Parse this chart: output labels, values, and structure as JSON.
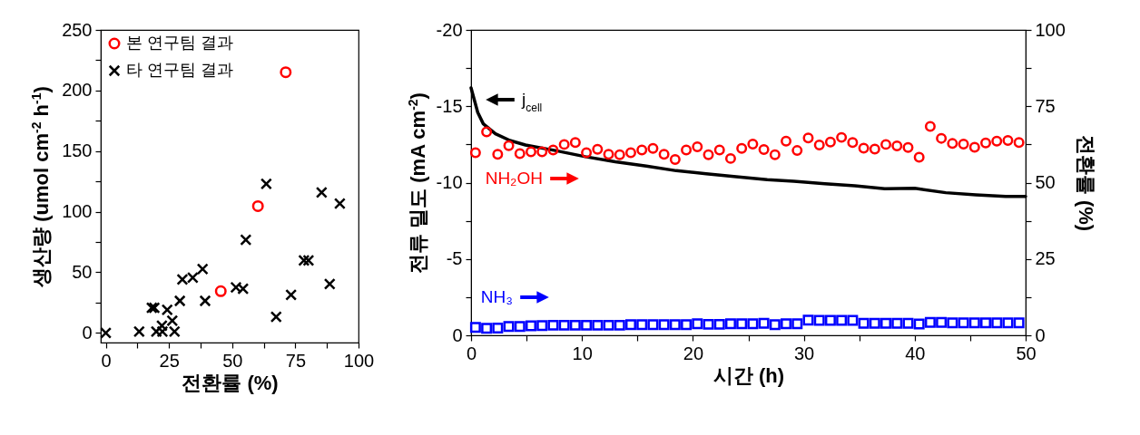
{
  "chart_data": [
    {
      "type": "scatter",
      "xlabel": "전환률 (%)",
      "ylabel": "생산량 (umol cm$^{-2}$ h$^{-1}$)",
      "xlim": [
        -2,
        100
      ],
      "ylim": [
        -8,
        250
      ],
      "xticks": [
        0,
        {
          "value": 12.5,
          "label": null
        },
        25,
        {
          "value": 37.5,
          "label": null
        },
        50,
        {
          "value": 62.5,
          "label": null
        },
        75,
        {
          "value": 87.5,
          "label": null
        },
        100
      ],
      "yticks": [
        0,
        {
          "value": 25,
          "label": null
        },
        50,
        {
          "value": 75,
          "label": null
        },
        100,
        {
          "value": 125,
          "label": null
        },
        150,
        {
          "value": 175,
          "label": null
        },
        200,
        {
          "value": 225,
          "label": null
        },
        250
      ],
      "grid": false,
      "legend": "top left",
      "series": [
        {
          "name": "본 연구팀 결과",
          "color": "#ff0000",
          "marker": "circle",
          "x": [
            45.5,
            60.2,
            71.2
          ],
          "values": [
            34.4,
            104.6,
            215.1
          ]
        },
        {
          "name": "타 연구팀 결과",
          "color": "#000000",
          "marker": "cross",
          "x": [
            0,
            13.2,
            18.2,
            19.2,
            20,
            22.2,
            22.4,
            24.3,
            26.3,
            27.2,
            29.3,
            30.3,
            34.4,
            38.3,
            39.3,
            51.5,
            54.3,
            55.4,
            63.5,
            67.4,
            73.3,
            78.4,
            80.2,
            85.4,
            88.6,
            92.6
          ],
          "values": [
            0,
            1,
            20.7,
            20.7,
            1,
            6,
            1,
            19,
            10,
            1,
            26.4,
            44,
            45.6,
            52.6,
            26.4,
            37.6,
            36.4,
            76.8,
            122.9,
            13.2,
            31.4,
            59.8,
            59.8,
            115.9,
            40.4,
            106.7
          ]
        }
      ]
    },
    {
      "type": "line",
      "xlabel": "시간 (h)",
      "ylabel": "전류 밀도 (mA cm$^{-2}$)",
      "y2label": "전환률 (%)",
      "xlim": [
        0,
        50
      ],
      "ylim": [
        0,
        -20
      ],
      "y2lim": [
        0,
        100
      ],
      "xticks": [
        0,
        {
          "value": 5,
          "label": null
        },
        10,
        {
          "value": 15,
          "label": null
        },
        20,
        {
          "value": 25,
          "label": null
        },
        30,
        {
          "value": 35,
          "label": null
        },
        40,
        {
          "value": 45,
          "label": null
        },
        50
      ],
      "yticks": [
        0,
        {
          "value": -2.5,
          "label": null
        },
        -5,
        {
          "value": -7.5,
          "label": null
        },
        -10,
        {
          "value": -12.5,
          "label": null
        },
        -15,
        {
          "value": -17.5,
          "label": null
        },
        -20
      ],
      "y2ticks": [
        0,
        {
          "value": 12.5,
          "label": null
        },
        25,
        {
          "value": 37.5,
          "label": null
        },
        50,
        {
          "value": 62.5,
          "label": null
        },
        75,
        {
          "value": 87.5,
          "label": null
        },
        100
      ],
      "grid": false,
      "annotations": [
        "j$_{cell}$",
        "NH₂OH",
        "NH₃"
      ],
      "series": [
        {
          "type": "line",
          "color": "#000000",
          "line_style": "solid",
          "marker": "none",
          "x": [
            0,
            0.3,
            0.6,
            1.1,
            2.2,
            3.5,
            4.9,
            7.6,
            10.3,
            13,
            15.8,
            18.5,
            21.2,
            23.9,
            26.7,
            29.1,
            31.9,
            34.6,
            37.3,
            40,
            42.8,
            45.5,
            48.2,
            50
          ],
          "values": [
            -16.2,
            -15.4,
            -14.6,
            -13.85,
            -13.2,
            -12.76,
            -12.46,
            -12.1,
            -11.7,
            -11.37,
            -11.08,
            -10.78,
            -10.58,
            -10.39,
            -10.19,
            -10.09,
            -9.93,
            -9.79,
            -9.6,
            -9.63,
            -9.34,
            -9.2,
            -9.1,
            -9.1
          ]
        },
        {
          "type": "scatter",
          "axis": "y2",
          "marker": "circle",
          "color": "#ff0000",
          "x": [
            0.4,
            1.4,
            2.4,
            3.4,
            4.4,
            5.4,
            6.4,
            7.4,
            8.4,
            9.4,
            10.4,
            11.4,
            12.4,
            13.4,
            14.4,
            15.4,
            16.4,
            17.4,
            18.4,
            19.4,
            20.4,
            21.4,
            22.4,
            23.4,
            24.4,
            25.4,
            26.4,
            27.4,
            28.4,
            29.4,
            30.4,
            31.4,
            32.4,
            33.4,
            34.4,
            35.4,
            36.4,
            37.4,
            38.4,
            39.4,
            40.4,
            41.4,
            42.4,
            43.4,
            44.4,
            45.4,
            46.4,
            47.4,
            48.4,
            49.4
          ],
          "values": [
            59.8,
            66.6,
            59.3,
            62.1,
            59.5,
            60.1,
            60.1,
            60.7,
            62.5,
            63.1,
            59.8,
            60.9,
            59.3,
            59.1,
            59.8,
            60.7,
            61.2,
            59.3,
            57.6,
            60.7,
            61.7,
            59.1,
            60.7,
            57.9,
            61.2,
            62.6,
            60.8,
            59.1,
            63.6,
            60.5,
            64.6,
            62.3,
            63.3,
            64.8,
            63.1,
            61.3,
            61.0,
            62.5,
            62.0,
            61.5,
            58.3,
            68.4,
            64.5,
            62.8,
            62.6,
            61.6,
            63.0,
            63.6,
            63.8,
            63.1
          ]
        },
        {
          "type": "scatter",
          "axis": "y2",
          "marker": "square",
          "color": "#0000ff",
          "x": [
            0.4,
            1.4,
            2.4,
            3.4,
            4.4,
            5.4,
            6.4,
            7.4,
            8.4,
            9.4,
            10.4,
            11.4,
            12.4,
            13.4,
            14.4,
            15.4,
            16.4,
            17.4,
            18.4,
            19.4,
            20.4,
            21.4,
            22.4,
            23.4,
            24.4,
            25.4,
            26.4,
            27.4,
            28.4,
            29.4,
            30.4,
            31.4,
            32.4,
            33.4,
            34.4,
            35.4,
            36.4,
            37.4,
            38.4,
            39.4,
            40.4,
            41.4,
            42.4,
            43.4,
            44.4,
            45.4,
            46.4,
            47.4,
            48.4,
            49.4
          ],
          "values": [
            2.6,
            2.3,
            2.4,
            2.9,
            2.9,
            3.1,
            3.2,
            3.3,
            3.3,
            3.3,
            3.3,
            3.3,
            3.3,
            3.3,
            3.5,
            3.5,
            3.5,
            3.5,
            3.5,
            3.5,
            3.8,
            3.6,
            3.6,
            3.8,
            3.8,
            3.8,
            3.9,
            3.5,
            3.8,
            3.8,
            5.0,
            4.9,
            4.9,
            4.9,
            4.9,
            3.9,
            3.9,
            3.9,
            3.9,
            3.9,
            3.7,
            4.2,
            4.2,
            4.1,
            4.1,
            4.1,
            4.1,
            4.1,
            4.1,
            4.1
          ]
        }
      ]
    }
  ]
}
